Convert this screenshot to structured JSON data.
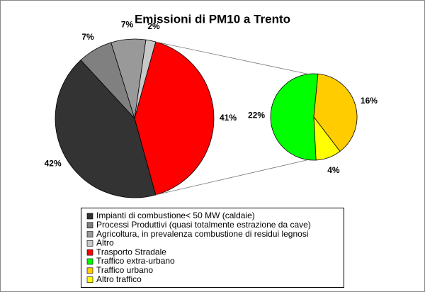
{
  "chart_data": [
    {
      "type": "pie",
      "title": "Emissioni di PM10 a Trento",
      "categories": [
        "Impianti di combustione< 50 MW (caldaie)",
        "Processi Produttivi (quasi totalmente estrazione da cave)",
        "Agricoltura, in prevalenza combustione di residui legnosi",
        "Altro",
        "Trasporto Stradale"
      ],
      "values": [
        42,
        7,
        7,
        2,
        41
      ],
      "value_labels": [
        "42%",
        "7%",
        "7%",
        "2%",
        "41%"
      ],
      "colors": [
        "#333333",
        "#808080",
        "#999999",
        "#c8c8c8",
        "#ff0000"
      ]
    },
    {
      "type": "pie",
      "categories": [
        "Traffico extra-urbano",
        "Traffico urbano",
        "Altro traffico"
      ],
      "values": [
        22,
        16,
        4
      ],
      "value_labels": [
        "22%",
        "16%",
        "4%"
      ],
      "colors": [
        "#00ff00",
        "#ffcc00",
        "#ffff00"
      ]
    }
  ]
}
